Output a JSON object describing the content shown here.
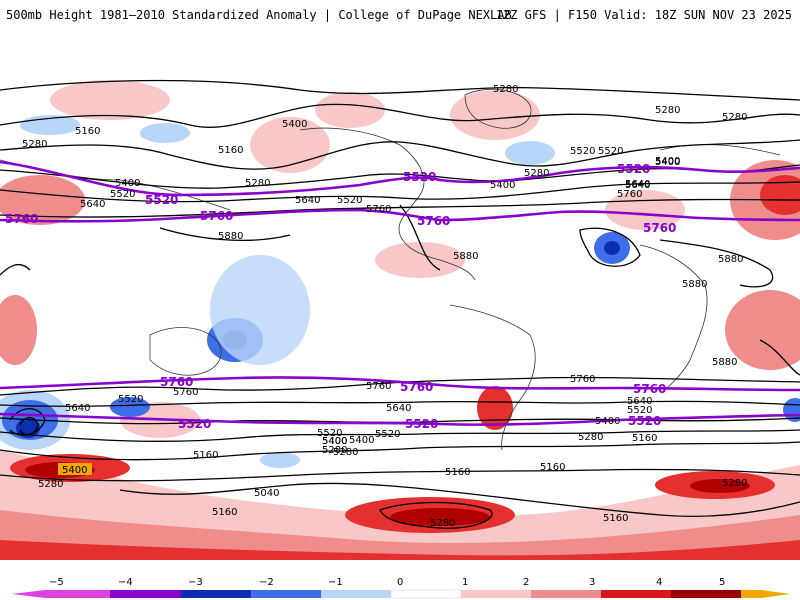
{
  "header": {
    "title": "500mb Height 1981–2010 Standardized Anomaly | College of DuPage NEXLAB",
    "run_info": "12Z GFS | F150 Valid: 18Z SUN NOV 23 2025"
  },
  "map": {
    "contour_labels_black": [
      "5280",
      "5160",
      "5280",
      "5400",
      "5160",
      "5280",
      "5280",
      "5520",
      "5400",
      "5280",
      "5640",
      "5400",
      "5520",
      "5640",
      "5880",
      "5640",
      "5520",
      "5760",
      "5400",
      "5880",
      "5280",
      "5520",
      "5640",
      "5400",
      "5760",
      "5880",
      "5880",
      "5880",
      "5520",
      "5760",
      "5640",
      "5760",
      "5640",
      "5520",
      "5400",
      "5280",
      "5160",
      "5640",
      "5520",
      "5400",
      "5280",
      "5520",
      "5400",
      "5280",
      "5160",
      "5400",
      "5280",
      "5040",
      "5160",
      "5160",
      "5280",
      "5280",
      "5160",
      "5160",
      "5760"
    ],
    "contour_labels_purple": [
      "5520",
      "5520",
      "5760",
      "5760",
      "5520",
      "5760",
      "5760",
      "5760",
      "5760",
      "5760",
      "5520",
      "5520",
      "5520"
    ],
    "highlight_label": "5400"
  },
  "colorbar": {
    "ticks": [
      "−5",
      "−4",
      "−3",
      "−2",
      "−1",
      "0",
      "1",
      "2",
      "3",
      "4",
      "5"
    ],
    "colors": {
      "neg5": "#e040e0",
      "neg4": "#8a00cc",
      "neg3": "#0a2fb0",
      "neg2": "#3f6fe8",
      "neg1": "#b8d6f7",
      "zero": "#ffffff",
      "pos1": "#f8c8c8",
      "pos2": "#ef8c8c",
      "pos3": "#d81818",
      "pos4": "#9a0000",
      "pos5": "#f0a800"
    }
  }
}
